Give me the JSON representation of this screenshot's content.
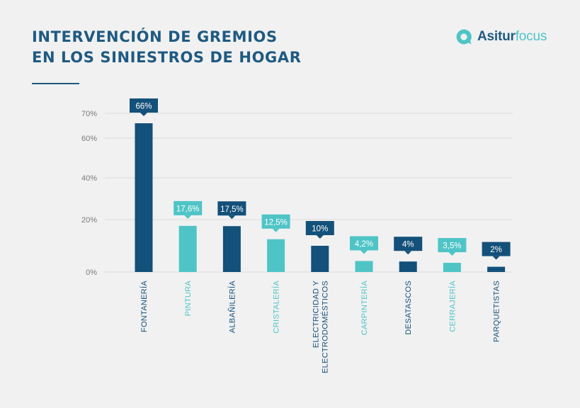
{
  "header": {
    "title_line1": "INTERVENCIÓN DE GREMIOS",
    "title_line2": "EN LOS SINIESTROS DE HOGAR"
  },
  "logo": {
    "text_main": "Asitur",
    "text_accent": "focus",
    "icon": "speech-bubble-q-icon"
  },
  "colors": {
    "dark": "#13507a",
    "light": "#4fc4c6",
    "axis_text": "#7b7b7b",
    "grid": "#dcdcdc"
  },
  "chart_data": {
    "type": "bar",
    "title": "INTERVENCIÓN DE GREMIOS EN LOS SINIESTROS DE HOGAR",
    "categories": [
      "FONTANERÍA",
      "PINTURA",
      "ALBAÑILERÍA",
      "CRISTALERÍA",
      [
        "ELECTRICIDAD Y",
        "ELECTRODOMÉSTICOS"
      ],
      "CARPINTERÍA",
      "DESATASCOS",
      "CERRAJERÍA",
      "PARQUETISTAS"
    ],
    "values": [
      66,
      17.6,
      17.5,
      12.5,
      10,
      4.2,
      4,
      3.5,
      2
    ],
    "data_labels": [
      "66%",
      "17,6%",
      "17,5%",
      "12,5%",
      "10%",
      "4,2%",
      "4%",
      "3,5%",
      "2%"
    ],
    "bar_colors": [
      "dark",
      "light",
      "dark",
      "light",
      "dark",
      "light",
      "dark",
      "light",
      "dark"
    ],
    "yticks": [
      {
        "value": 0,
        "label": "0%"
      },
      {
        "value": 20,
        "label": "20%"
      },
      {
        "value": 40,
        "label": "40%"
      },
      {
        "value": 60,
        "label": "60%"
      },
      {
        "value": 70,
        "label": "70%"
      }
    ],
    "ylim": [
      0,
      70
    ],
    "scale": "broken",
    "grid": true,
    "legend": "none",
    "xlabel": "",
    "ylabel": ""
  }
}
